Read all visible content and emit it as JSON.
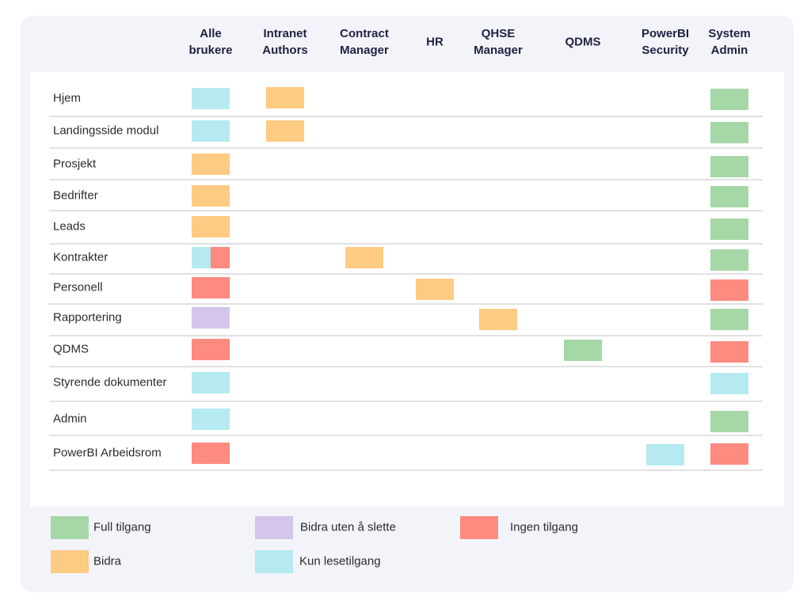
{
  "colors": {
    "full": "#a6d7a6",
    "contribute": "#fecb83",
    "contribute_no_delete": "#d4c5ea",
    "none": "#fe8a80",
    "read": "#b4eaf0"
  },
  "columns": [
    "Alle\nbrukere",
    "Intranet\nAuthors",
    "Contract\nManager",
    "HR",
    "QHSE\nManager",
    "QDMS",
    "PowerBI\nSecurity",
    "System\nAdmin"
  ],
  "rows": [
    {
      "label": "Hjem",
      "cells": [
        [
          "read"
        ],
        [
          "contribute"
        ],
        [],
        [],
        [],
        [],
        [],
        [
          "full"
        ]
      ]
    },
    {
      "label": "Landingsside modul",
      "cells": [
        [
          "read"
        ],
        [
          "contribute"
        ],
        [],
        [],
        [],
        [],
        [],
        [
          "full"
        ]
      ]
    },
    {
      "label": "Prosjekt",
      "cells": [
        [
          "contribute"
        ],
        [],
        [],
        [],
        [],
        [],
        [],
        [
          "full"
        ]
      ]
    },
    {
      "label": "Bedrifter",
      "cells": [
        [
          "contribute"
        ],
        [],
        [],
        [],
        [],
        [],
        [],
        [
          "full"
        ]
      ]
    },
    {
      "label": "Leads",
      "cells": [
        [
          "contribute"
        ],
        [],
        [],
        [],
        [],
        [],
        [],
        [
          "full"
        ]
      ]
    },
    {
      "label": "Kontrakter",
      "cells": [
        [
          "read",
          "none"
        ],
        [],
        [
          "contribute"
        ],
        [],
        [],
        [],
        [],
        [
          "full"
        ]
      ]
    },
    {
      "label": "Personell",
      "cells": [
        [
          "none"
        ],
        [],
        [],
        [
          "contribute"
        ],
        [],
        [],
        [],
        [
          "none"
        ]
      ]
    },
    {
      "label": "Rapportering",
      "cells": [
        [
          "contribute_no_delete"
        ],
        [],
        [],
        [],
        [
          "contribute"
        ],
        [],
        [],
        [
          "full"
        ]
      ]
    },
    {
      "label": "QDMS",
      "cells": [
        [
          "none"
        ],
        [],
        [],
        [],
        [],
        [
          "full"
        ],
        [],
        [
          "none"
        ]
      ]
    },
    {
      "label": "Styrende dokumenter",
      "cells": [
        [
          "read"
        ],
        [],
        [],
        [],
        [],
        [],
        [],
        [
          "read"
        ]
      ]
    },
    {
      "label": "Admin",
      "cells": [
        [
          "read"
        ],
        [],
        [],
        [],
        [],
        [],
        [],
        [
          "full"
        ]
      ]
    },
    {
      "label": "PowerBI Arbeidsrom",
      "cells": [
        [
          "none"
        ],
        [],
        [],
        [],
        [],
        [],
        [
          "read"
        ],
        [
          "none"
        ]
      ]
    }
  ],
  "legend": [
    {
      "key": "full",
      "label": "Full tilgang"
    },
    {
      "key": "contribute_no_delete",
      "label": "Bidra uten å slette"
    },
    {
      "key": "none",
      "label": "Ingen tilgang"
    },
    {
      "key": "contribute",
      "label": "Bidra"
    },
    {
      "key": "read",
      "label": "Kun lesetilgang"
    }
  ]
}
